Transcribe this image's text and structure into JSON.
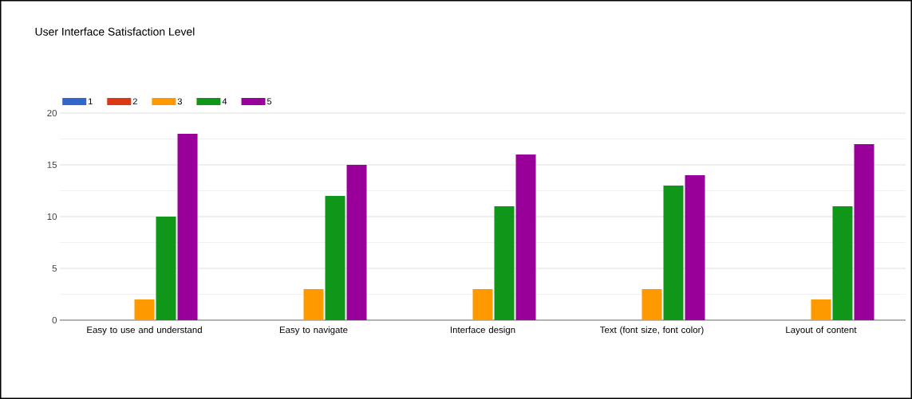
{
  "chart_data": {
    "type": "bar",
    "title": "User Interface Satisfaction Level",
    "categories": [
      "Easy to use and understand",
      "Easy to navigate",
      "Interface design",
      "Text (font size, font color)",
      "Layout of content"
    ],
    "series": [
      {
        "name": "1",
        "color": "#3366cc",
        "values": [
          0,
          0,
          0,
          0,
          0
        ]
      },
      {
        "name": "2",
        "color": "#dc3912",
        "values": [
          0,
          0,
          0,
          0,
          0
        ]
      },
      {
        "name": "3",
        "color": "#ff9900",
        "values": [
          2,
          3,
          3,
          3,
          2
        ]
      },
      {
        "name": "4",
        "color": "#109618",
        "values": [
          10,
          12,
          11,
          13,
          11
        ]
      },
      {
        "name": "5",
        "color": "#990099",
        "values": [
          18,
          15,
          16,
          14,
          17
        ]
      }
    ],
    "ylim": [
      0,
      20
    ],
    "yticks": [
      0,
      5,
      10,
      15,
      20
    ],
    "grid": "y",
    "legend": "top left"
  }
}
